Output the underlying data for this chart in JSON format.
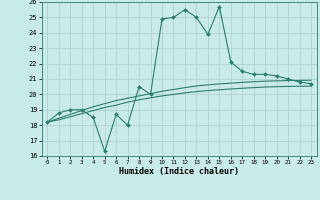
{
  "xlabel": "Humidex (Indice chaleur)",
  "x_values": [
    0,
    1,
    2,
    3,
    4,
    5,
    6,
    7,
    8,
    9,
    10,
    11,
    12,
    13,
    14,
    15,
    16,
    17,
    18,
    19,
    20,
    21,
    22,
    23
  ],
  "line1_y": [
    18.2,
    18.8,
    19.0,
    19.0,
    18.5,
    16.3,
    18.7,
    18.0,
    20.5,
    20.0,
    24.9,
    25.0,
    25.5,
    25.0,
    23.9,
    25.7,
    22.1,
    21.5,
    21.3,
    21.3,
    21.2,
    21.0,
    20.8,
    20.7
  ],
  "line2_y": [
    18.2,
    18.45,
    18.7,
    18.95,
    19.2,
    19.4,
    19.6,
    19.75,
    19.9,
    20.05,
    20.2,
    20.32,
    20.44,
    20.55,
    20.62,
    20.68,
    20.73,
    20.78,
    20.82,
    20.86,
    20.88,
    20.9,
    20.91,
    20.92
  ],
  "line3_y": [
    18.2,
    18.35,
    18.55,
    18.75,
    18.95,
    19.15,
    19.3,
    19.5,
    19.65,
    19.78,
    19.9,
    20.0,
    20.1,
    20.18,
    20.25,
    20.3,
    20.35,
    20.4,
    20.44,
    20.48,
    20.5,
    20.52,
    20.53,
    20.54
  ],
  "line_color": "#2a7d6e",
  "bg_color": "#c8eae8",
  "grid_color": "#aacece",
  "ylim": [
    16,
    26
  ],
  "xlim_min": -0.5,
  "xlim_max": 23.5
}
